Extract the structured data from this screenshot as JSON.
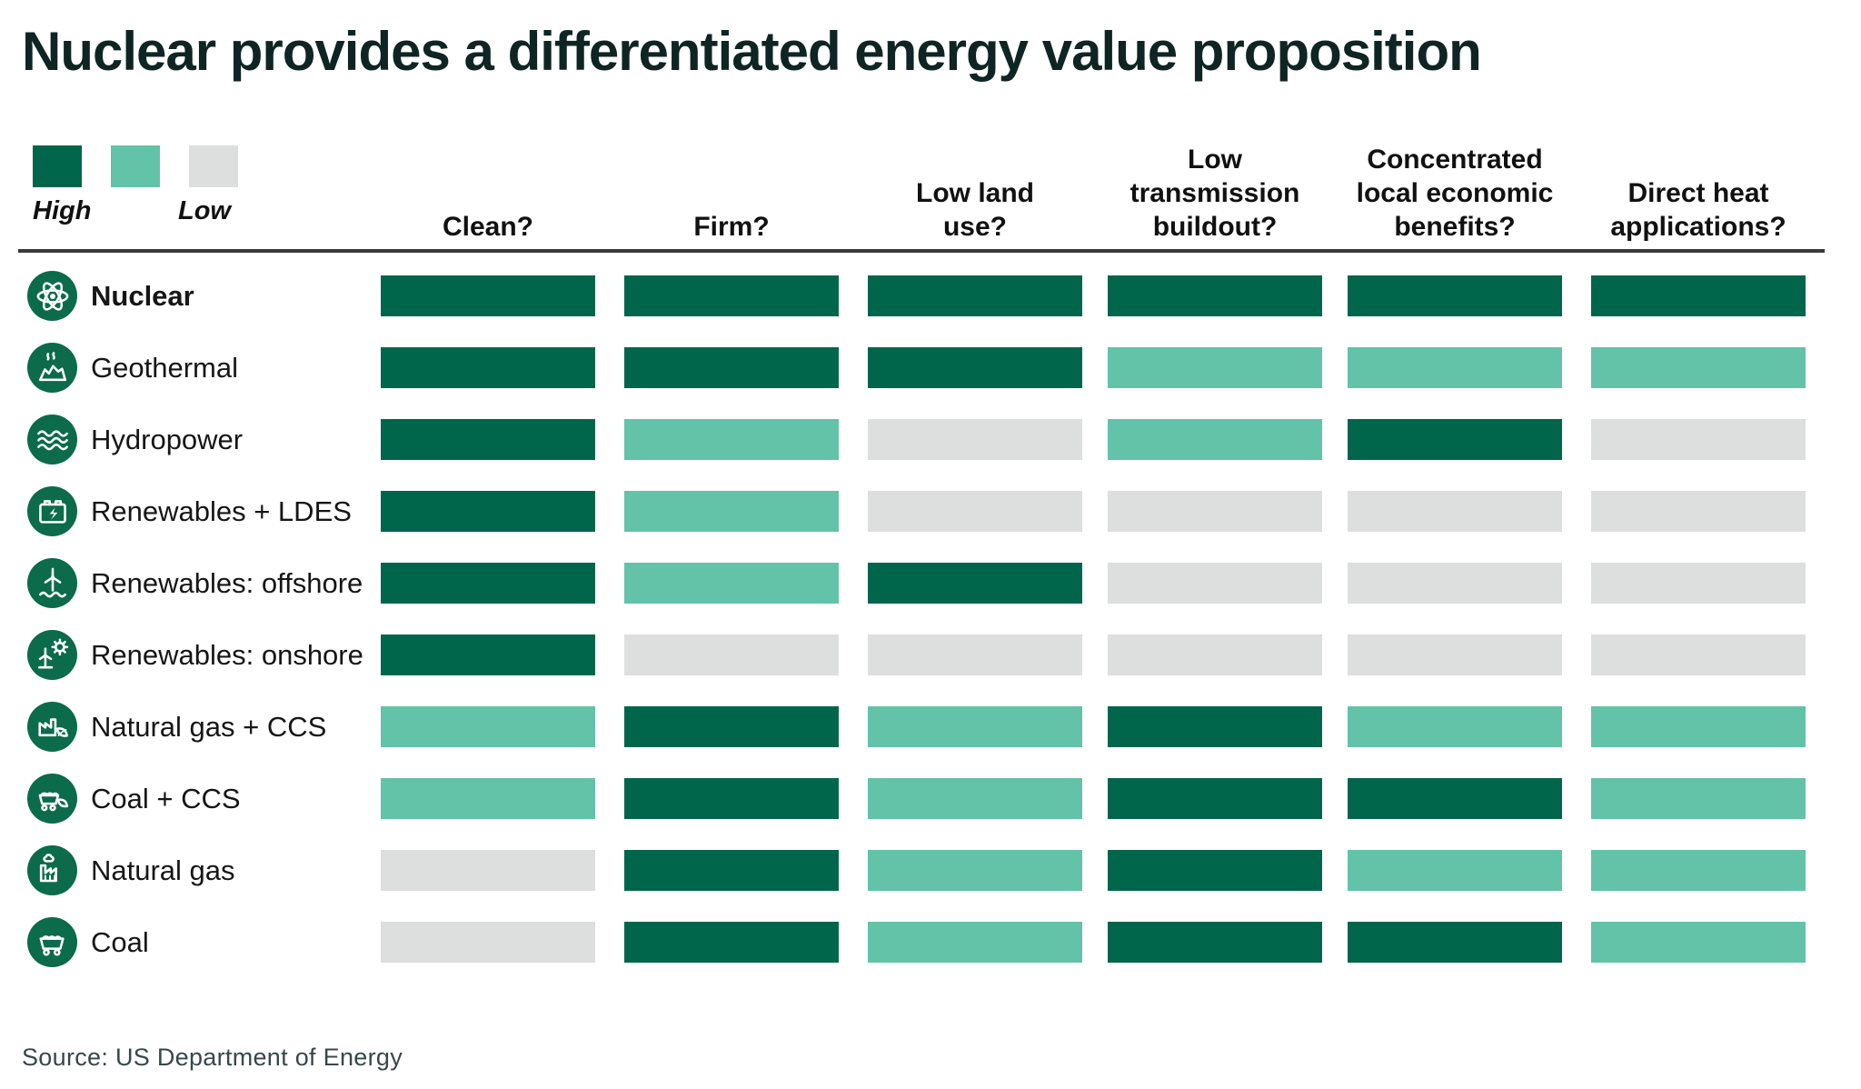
{
  "title": "Nuclear provides a differentiated energy value proposition",
  "legend": {
    "high_label": "High",
    "low_label": "Low",
    "items": [
      {
        "rating": "High"
      },
      {
        "rating": "Medium"
      },
      {
        "rating": "Low"
      }
    ]
  },
  "source": "Source: US Department of Energy",
  "chart_data": {
    "type": "heatmap",
    "title": "Nuclear provides a differentiated energy value proposition",
    "scale": [
      "High",
      "Medium",
      "Low"
    ],
    "rating_colors": {
      "High": "#00664B",
      "Medium": "#62C3A9",
      "Low": "#DDDEDE"
    },
    "icon_circle_color": "#0B6B4A",
    "columns": [
      "Clean?",
      "Firm?",
      "Low land\nuse?",
      "Low\ntransmission\nbuildout?",
      "Concentrated\nlocal economic\nbenefits?",
      "Direct heat\napplications?"
    ],
    "rows": [
      {
        "label": "Nuclear",
        "icon": "atom-icon",
        "bold": true,
        "values": [
          "High",
          "High",
          "High",
          "High",
          "High",
          "High"
        ]
      },
      {
        "label": "Geothermal",
        "icon": "geothermal-icon",
        "bold": false,
        "values": [
          "High",
          "High",
          "High",
          "Medium",
          "Medium",
          "Medium"
        ]
      },
      {
        "label": "Hydropower",
        "icon": "water-waves-icon",
        "bold": false,
        "values": [
          "High",
          "Medium",
          "Low",
          "Medium",
          "High",
          "Low"
        ]
      },
      {
        "label": "Renewables + LDES",
        "icon": "battery-icon",
        "bold": false,
        "values": [
          "High",
          "Medium",
          "Low",
          "Low",
          "Low",
          "Low"
        ]
      },
      {
        "label": "Renewables: offshore",
        "icon": "offshore-wind-icon",
        "bold": false,
        "values": [
          "High",
          "Medium",
          "High",
          "Low",
          "Low",
          "Low"
        ]
      },
      {
        "label": "Renewables: onshore",
        "icon": "onshore-wind-sun-icon",
        "bold": false,
        "values": [
          "High",
          "Low",
          "Low",
          "Low",
          "Low",
          "Low"
        ]
      },
      {
        "label": "Natural gas + CCS",
        "icon": "factory-leaf-icon",
        "bold": false,
        "values": [
          "Medium",
          "High",
          "Medium",
          "High",
          "Medium",
          "Medium"
        ]
      },
      {
        "label": "Coal + CCS",
        "icon": "coal-cart-leaf-icon",
        "bold": false,
        "values": [
          "Medium",
          "High",
          "Medium",
          "High",
          "High",
          "Medium"
        ]
      },
      {
        "label": "Natural gas",
        "icon": "factory-icon",
        "bold": false,
        "values": [
          "Low",
          "High",
          "Medium",
          "High",
          "Medium",
          "Medium"
        ]
      },
      {
        "label": "Coal",
        "icon": "coal-cart-icon",
        "bold": false,
        "values": [
          "Low",
          "High",
          "Medium",
          "High",
          "High",
          "Medium"
        ]
      }
    ]
  }
}
